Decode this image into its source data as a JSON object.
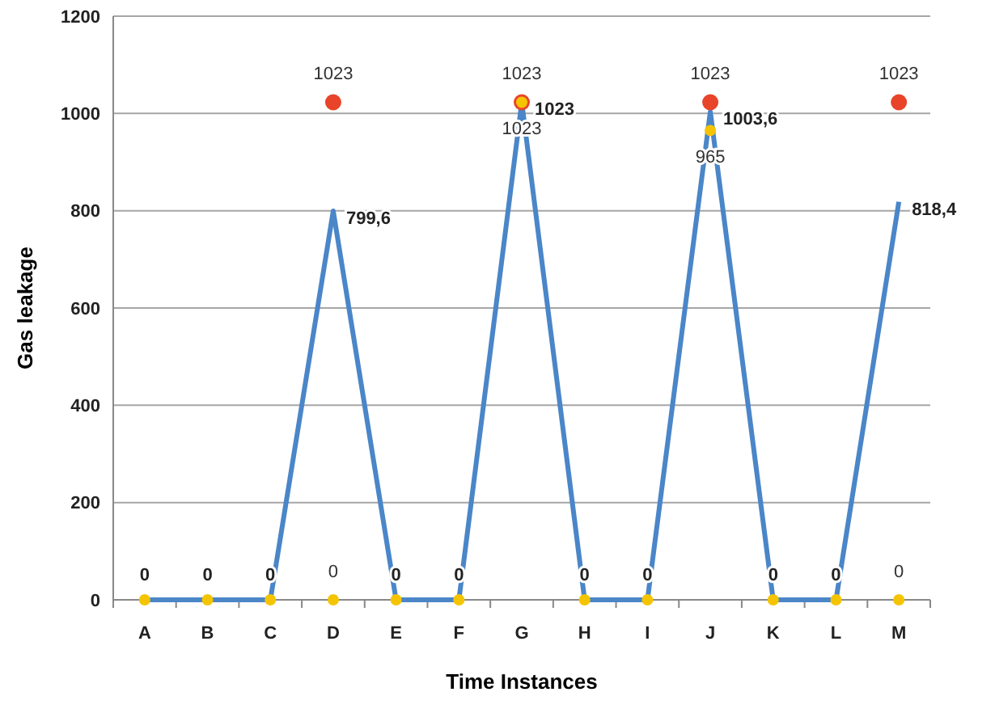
{
  "chart_data": {
    "type": "line",
    "xlabel": "Time Instances",
    "ylabel": "Gas leakage",
    "categories": [
      "A",
      "B",
      "C",
      "D",
      "E",
      "F",
      "G",
      "H",
      "I",
      "J",
      "K",
      "L",
      "M"
    ],
    "ylim": [
      0,
      1200
    ],
    "yticks": [
      0,
      200,
      400,
      600,
      800,
      1000,
      1200
    ],
    "grid": "y",
    "series": [
      {
        "color": "#4a86c8",
        "marker": "none",
        "values": [
          0,
          0,
          0,
          799.6,
          0,
          0,
          1023,
          0,
          0,
          1003.6,
          0,
          0,
          818.4
        ],
        "value_labels": [
          "0",
          "0",
          "0",
          "799,6",
          "0",
          "0",
          "1023",
          "0",
          "0",
          "1003,6",
          "0",
          "0",
          "818,4"
        ]
      },
      {
        "type": "scatter",
        "color": "#f5c400",
        "marker": "circle",
        "values": [
          0,
          0,
          0,
          0,
          0,
          0,
          1023,
          0,
          0,
          965,
          0,
          0,
          0
        ],
        "value_labels": [
          null,
          null,
          null,
          "0",
          null,
          null,
          "1023",
          null,
          null,
          "965",
          null,
          null,
          "0"
        ]
      },
      {
        "type": "scatter",
        "color": "#e8442a",
        "marker": "circle",
        "values": [
          null,
          null,
          null,
          1023,
          null,
          null,
          1023,
          null,
          null,
          1023,
          null,
          null,
          1023
        ],
        "value_labels": [
          null,
          null,
          null,
          "1023",
          null,
          null,
          "1023",
          null,
          null,
          "1023",
          null,
          null,
          "1023"
        ]
      }
    ]
  }
}
